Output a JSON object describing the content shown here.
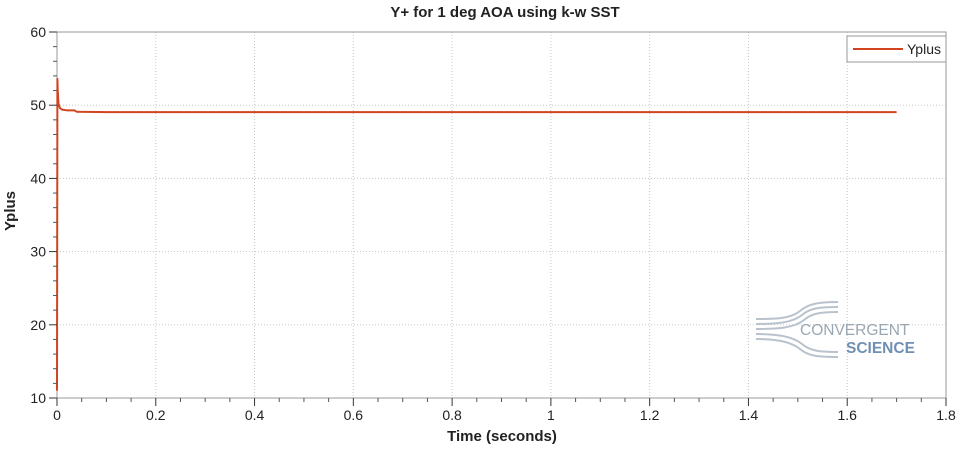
{
  "chart_data": {
    "type": "line",
    "title": "Y+ for 1 deg AOA using k-w SST",
    "xlabel": "Time (seconds)",
    "ylabel": "Yplus",
    "xlim": [
      0,
      1.8
    ],
    "ylim": [
      10,
      60
    ],
    "x_ticks": [
      0,
      0.2,
      0.4,
      0.6,
      0.8,
      1,
      1.2,
      1.4,
      1.6,
      1.8
    ],
    "x_tick_labels": [
      "0",
      "0.2",
      "0.4",
      "0.6",
      "0.8",
      "1",
      "1.2",
      "1.4",
      "1.6",
      "1.8"
    ],
    "y_ticks": [
      10,
      20,
      30,
      40,
      50,
      60
    ],
    "y_tick_labels": [
      "10",
      "20",
      "30",
      "40",
      "50",
      "60"
    ],
    "grid": true,
    "legend_position": "top-right",
    "series": [
      {
        "name": "Yplus",
        "color": "#d2431f",
        "x": [
          0,
          0.0008,
          0.0015,
          0.003,
          0.006,
          0.01,
          0.02,
          0.035,
          0.04,
          0.1,
          0.2,
          0.4,
          0.6,
          0.8,
          1.0,
          1.2,
          1.4,
          1.6,
          1.7
        ],
        "y": [
          11,
          53.6,
          52.0,
          50.2,
          49.6,
          49.4,
          49.3,
          49.3,
          49.1,
          49.05,
          49.05,
          49.05,
          49.05,
          49.05,
          49.05,
          49.05,
          49.05,
          49.05,
          49.05
        ]
      }
    ]
  },
  "watermark": {
    "line1": "CONVERGENT",
    "line2": "SCIENCE"
  }
}
